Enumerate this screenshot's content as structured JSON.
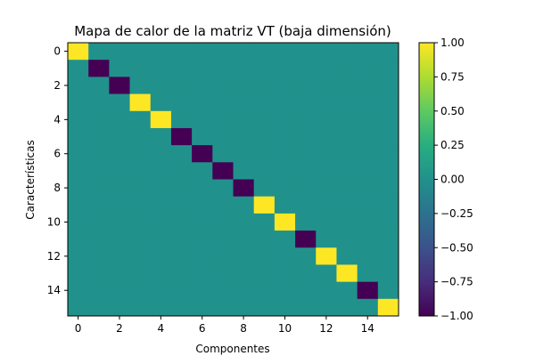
{
  "chart_data": {
    "type": "heatmap",
    "title": "Mapa de calor de la matriz VT (baja dimensión)",
    "xlabel": "Componentes",
    "ylabel": "Características",
    "rows": 16,
    "cols": 16,
    "diagonal": [
      1,
      -1,
      -1,
      1,
      1,
      -1,
      -1,
      -1,
      -1,
      1,
      1,
      -1,
      1,
      1,
      -1,
      1
    ],
    "off_diagonal_value": 0,
    "x_ticks": [
      0,
      2,
      4,
      6,
      8,
      10,
      12,
      14
    ],
    "y_ticks": [
      0,
      2,
      4,
      6,
      8,
      10,
      12,
      14
    ],
    "colorbar": {
      "min": -1.0,
      "max": 1.0,
      "ticks": [
        "-1.00",
        "-0.75",
        "-0.50",
        "-0.25",
        "0.00",
        "0.25",
        "0.50",
        "0.75",
        "1.00"
      ],
      "colormap": "viridis"
    },
    "grid": false
  }
}
